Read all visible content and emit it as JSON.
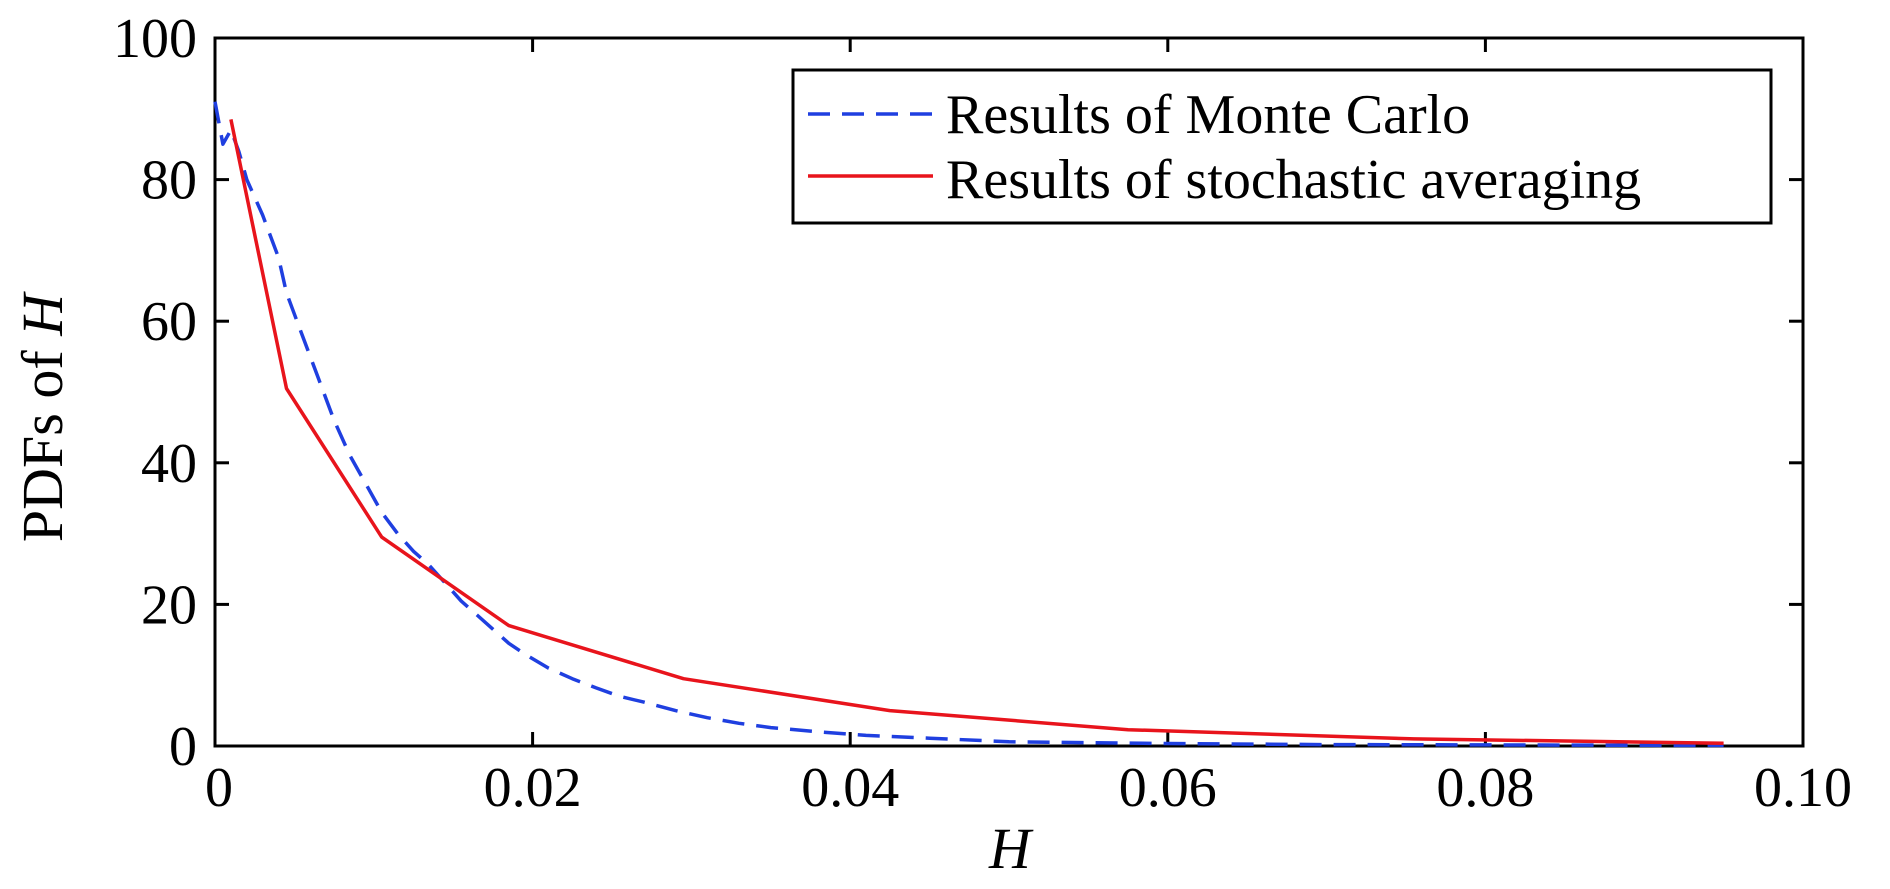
{
  "chart_data": {
    "type": "line",
    "xlabel": "H",
    "ylabel_prefix": "PDFs of ",
    "ylabel_var": "H",
    "xlim": [
      0,
      0.1
    ],
    "ylim": [
      0,
      100
    ],
    "x_ticks": [
      0,
      0.02,
      0.04,
      0.06,
      0.08,
      0.1
    ],
    "x_tick_labels": [
      "0",
      "0.02",
      "0.04",
      "0.06",
      "0.08",
      "0.10"
    ],
    "y_ticks": [
      0,
      20,
      40,
      60,
      80,
      100
    ],
    "y_tick_labels": [
      "0",
      "20",
      "40",
      "60",
      "80",
      "100"
    ],
    "grid": false,
    "legend_position": "top-right",
    "series": [
      {
        "name": "Results of Monte Carlo",
        "style": "dashed",
        "color": "#1f3fe0",
        "x": [
          0.0,
          0.0005,
          0.001,
          0.0015,
          0.002,
          0.003,
          0.004,
          0.0045,
          0.0055,
          0.0065,
          0.0075,
          0.0085,
          0.0095,
          0.0105,
          0.0115,
          0.0125,
          0.0135,
          0.0145,
          0.0155,
          0.0165,
          0.0175,
          0.0185,
          0.0195,
          0.021,
          0.0225,
          0.024,
          0.0255,
          0.027,
          0.029,
          0.031,
          0.033,
          0.035,
          0.038,
          0.041,
          0.045,
          0.05,
          0.06,
          0.07,
          0.08,
          0.09,
          0.095
        ],
        "y": [
          91,
          85,
          87,
          84,
          80,
          75,
          69,
          64,
          58,
          52,
          46,
          41,
          37,
          33,
          30,
          27.5,
          25.5,
          23,
          20.5,
          18.5,
          16.5,
          14.5,
          13,
          11,
          9.5,
          8.2,
          7,
          6.2,
          5,
          4,
          3.2,
          2.6,
          2,
          1.5,
          1.1,
          0.6,
          0.35,
          0.2,
          0.15,
          0.1,
          0.08
        ]
      },
      {
        "name": "Results of stochastic averaging",
        "style": "solid",
        "color": "#e8141c",
        "x": [
          0.001,
          0.0045,
          0.0105,
          0.0185,
          0.0295,
          0.0425,
          0.0575,
          0.0755,
          0.095
        ],
        "y": [
          88.5,
          50.5,
          29.5,
          17,
          9.5,
          5,
          2.3,
          1,
          0.4
        ]
      }
    ]
  }
}
